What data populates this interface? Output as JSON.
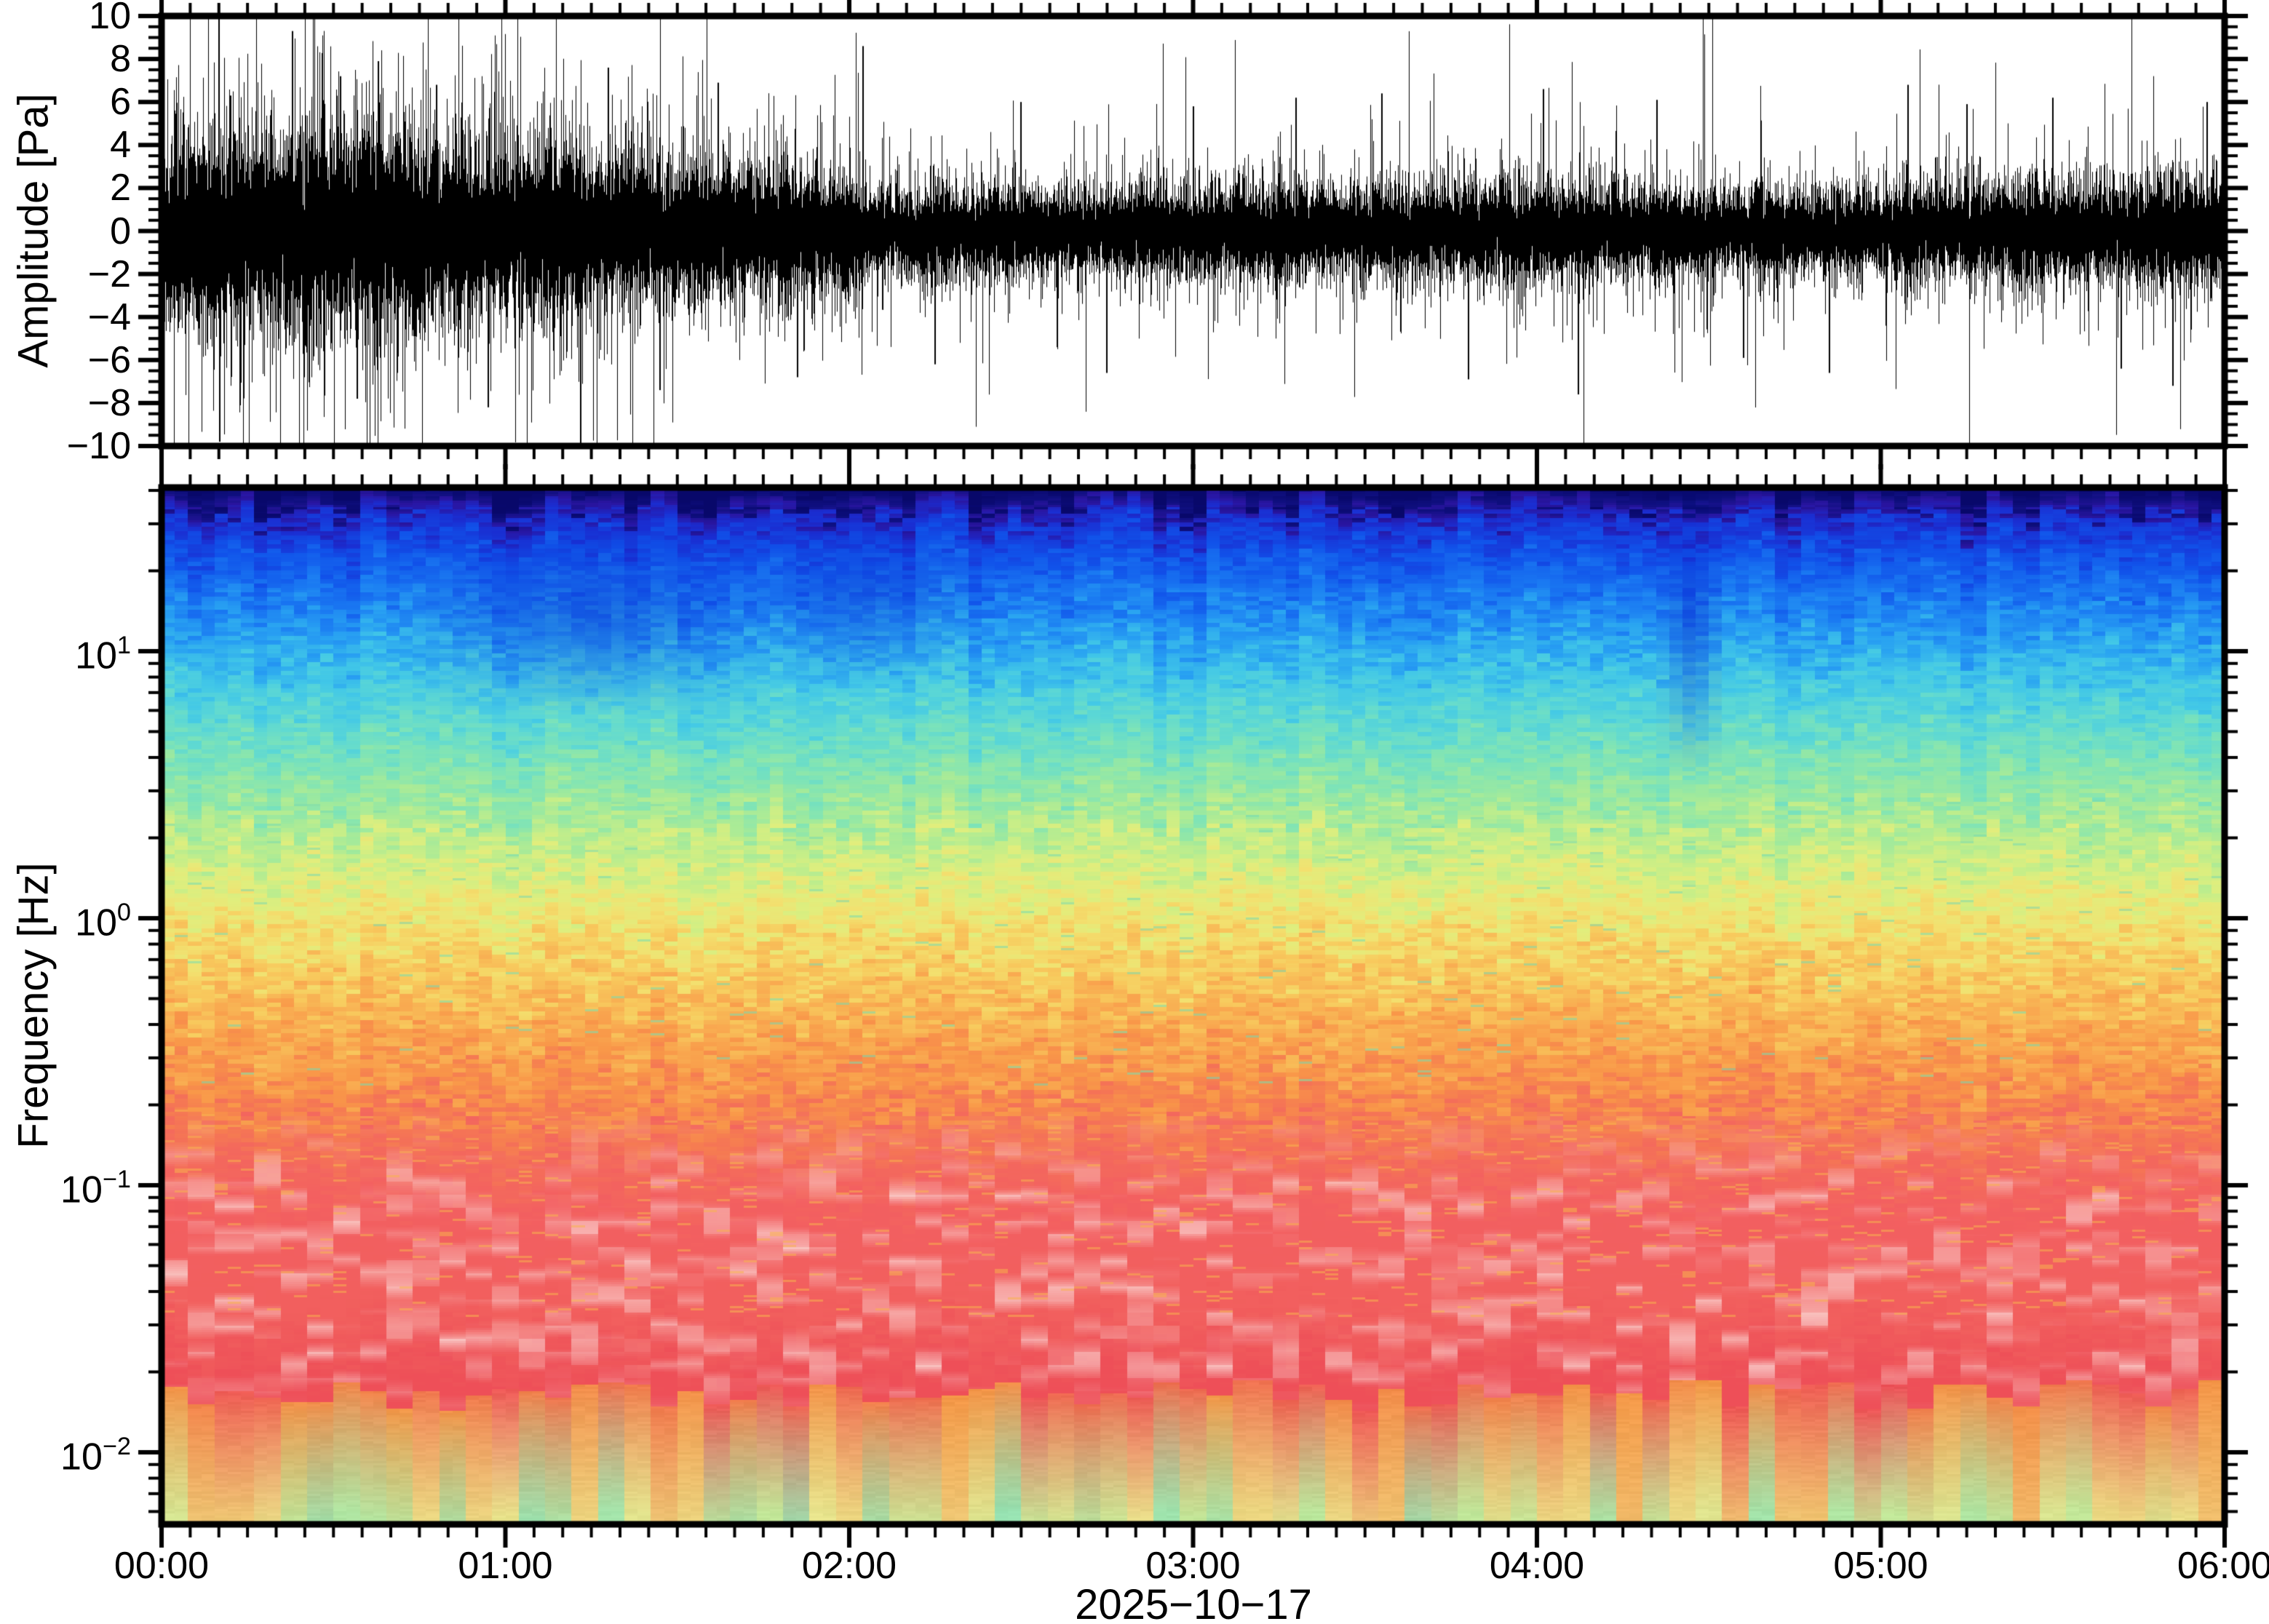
{
  "figure": {
    "background": "#ffffff",
    "frame_color": "#000000",
    "text_color": "#000000"
  },
  "x_axis": {
    "date": "2025−10−17",
    "range_hours": [
      0,
      6
    ],
    "minor_tick_minutes": 5,
    "ticks": [
      {
        "label": "00:00",
        "hour": 0
      },
      {
        "label": "01:00",
        "hour": 1
      },
      {
        "label": "02:00",
        "hour": 2
      },
      {
        "label": "03:00",
        "hour": 3
      },
      {
        "label": "04:00",
        "hour": 4
      },
      {
        "label": "05:00",
        "hour": 5
      },
      {
        "label": "06:00",
        "hour": 6
      }
    ]
  },
  "chart_data": [
    {
      "type": "line",
      "name": "infrasound-waveform",
      "ylabel": "Amplitude [Pa]",
      "ylim": [
        -10,
        10
      ],
      "y_major_step": 2,
      "y_minor_step": 0.5,
      "yticks": [
        {
          "label": "10",
          "value": 10
        },
        {
          "label": "8",
          "value": 8
        },
        {
          "label": "6",
          "value": 6
        },
        {
          "label": "4",
          "value": 4
        },
        {
          "label": "2",
          "value": 2
        },
        {
          "label": "0",
          "value": 0
        },
        {
          "label": "−2",
          "value": -2
        },
        {
          "label": "−4",
          "value": -4
        },
        {
          "label": "−6",
          "value": -6
        },
        {
          "label": "−8",
          "value": -8
        },
        {
          "label": "−10",
          "value": -10
        }
      ],
      "line_color": "#000000",
      "grid": false,
      "envelope_pa": [
        [
          0.0,
          1.25
        ],
        [
          0.15,
          1.3
        ],
        [
          0.4,
          1.32
        ],
        [
          0.62,
          1.38
        ],
        [
          0.8,
          1.2
        ],
        [
          1.0,
          1.08
        ],
        [
          1.25,
          1.0
        ],
        [
          1.5,
          0.9
        ],
        [
          1.75,
          0.85
        ],
        [
          2.0,
          0.8
        ],
        [
          2.06,
          0.55
        ],
        [
          2.3,
          0.58
        ],
        [
          2.6,
          0.54
        ],
        [
          2.9,
          0.58
        ],
        [
          3.2,
          0.62
        ],
        [
          3.5,
          0.56
        ],
        [
          3.8,
          0.6
        ],
        [
          4.1,
          0.62
        ],
        [
          4.4,
          0.54
        ],
        [
          4.7,
          0.52
        ],
        [
          5.0,
          0.57
        ],
        [
          5.3,
          0.62
        ],
        [
          5.6,
          0.65
        ],
        [
          6.0,
          0.68
        ]
      ],
      "spikes_pa": [
        [
          0.17,
          -9.8
        ],
        [
          0.2,
          6.3
        ],
        [
          0.38,
          9.3
        ],
        [
          0.52,
          7.2
        ],
        [
          0.57,
          -7.8
        ],
        [
          0.63,
          7.9
        ],
        [
          0.8,
          6.8
        ],
        [
          0.95,
          -8.2
        ],
        [
          1.22,
          -10.0
        ],
        [
          1.3,
          7.6
        ],
        [
          1.45,
          -7.4
        ],
        [
          1.62,
          6.9
        ],
        [
          1.85,
          -6.8
        ],
        [
          2.04,
          8.6
        ],
        [
          2.25,
          -6.2
        ],
        [
          2.5,
          6.0
        ],
        [
          2.75,
          -6.6
        ],
        [
          3.0,
          5.8
        ],
        [
          3.3,
          6.2
        ],
        [
          3.55,
          6.4
        ],
        [
          3.8,
          -6.9
        ],
        [
          4.02,
          6.6
        ],
        [
          4.12,
          -7.6
        ],
        [
          4.35,
          6.1
        ],
        [
          4.6,
          -5.9
        ],
        [
          4.85,
          -6.6
        ],
        [
          5.08,
          6.8
        ],
        [
          5.25,
          5.9
        ],
        [
          5.5,
          6.2
        ],
        [
          5.7,
          -6.4
        ],
        [
          5.85,
          -7.2
        ],
        [
          5.95,
          6.0
        ]
      ]
    },
    {
      "type": "heatmap",
      "name": "infrasound-spectrogram",
      "ylabel": "Frequency [Hz]",
      "yscale": "log",
      "freq_range_hz": [
        0.0054,
        41
      ],
      "time_bin_minutes": 5,
      "yticks": [
        {
          "base": "10",
          "exp": "1",
          "value": 10
        },
        {
          "base": "10",
          "exp": "0",
          "value": 1
        },
        {
          "base": "10",
          "exp": "−1",
          "value": 0.1
        },
        {
          "base": "10",
          "exp": "−2",
          "value": 0.01
        }
      ],
      "freq_color_profile": [
        {
          "frac": 0.0,
          "color": "#08086a"
        },
        {
          "frac": 0.012,
          "color": "#101080"
        },
        {
          "frac": 0.02,
          "color": "#2a15a0"
        },
        {
          "frac": 0.032,
          "color": "#1b2ed2"
        },
        {
          "frac": 0.065,
          "color": "#1152ea"
        },
        {
          "frac": 0.105,
          "color": "#1a78f2"
        },
        {
          "frac": 0.145,
          "color": "#29a2f2"
        },
        {
          "frac": 0.185,
          "color": "#42c8e8"
        },
        {
          "frac": 0.225,
          "color": "#5ed9d4"
        },
        {
          "frac": 0.265,
          "color": "#7ee4b8"
        },
        {
          "frac": 0.305,
          "color": "#a0ea9d"
        },
        {
          "frac": 0.345,
          "color": "#c4ee8a"
        },
        {
          "frac": 0.385,
          "color": "#e2ee7d"
        },
        {
          "frac": 0.425,
          "color": "#f3e170"
        },
        {
          "frac": 0.465,
          "color": "#f8cb5e"
        },
        {
          "frac": 0.515,
          "color": "#f9b053"
        },
        {
          "frac": 0.565,
          "color": "#f99749"
        },
        {
          "frac": 0.615,
          "color": "#f67c52"
        },
        {
          "frac": 0.655,
          "color": "#f4695d"
        },
        {
          "frac": 0.705,
          "color": "#f35f61"
        },
        {
          "frac": 0.79,
          "color": "#f2605e"
        },
        {
          "frac": 0.87,
          "color": "#ee4f58"
        }
      ],
      "pink_streak_color": "#fbd9d6",
      "amber_streak_color": "#f8b24e",
      "green_speck_color": "#7adbb0",
      "dark_blue_patch_color": "#0a2ace",
      "bottom_band": {
        "start_frac": 0.875,
        "top_colors": [
          "#ee4e57",
          "#f59b45"
        ],
        "bottom_colors": [
          "#f2b766",
          "#e9e48c",
          "#bce89b",
          "#96e2b2"
        ]
      },
      "dark_patches": [
        {
          "hour": 1.25,
          "hour_width": 0.55,
          "frac": 0.12,
          "frac_height": 0.1,
          "amount": 0.45
        },
        {
          "hour": 2.05,
          "hour_width": 0.35,
          "frac": 0.1,
          "frac_height": 0.09,
          "amount": 0.38
        },
        {
          "hour": 4.45,
          "hour_width": 0.1,
          "frac": 0.13,
          "frac_height": 0.15,
          "amount": 0.5
        }
      ]
    }
  ]
}
